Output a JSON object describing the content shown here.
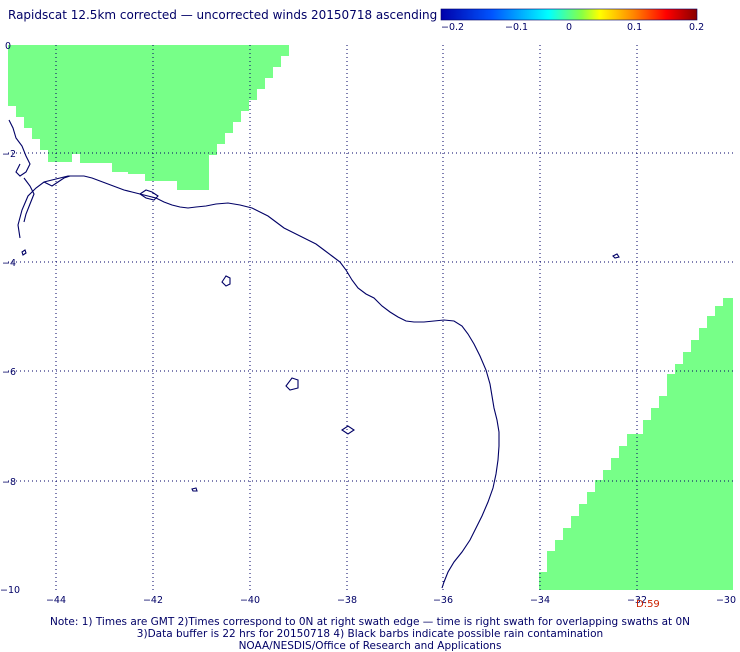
{
  "title": "Rapidscat 12.5km corrected — uncorrected winds 20150718 ascending",
  "colorbar": {
    "ticks": [
      "−0.2",
      "−0.1",
      "0",
      "0.1",
      "0.2"
    ],
    "stops": [
      "#0000aa",
      "#0055ff",
      "#00ffff",
      "#ffff00",
      "#ff8800",
      "#ff0000",
      "#880000"
    ]
  },
  "axes": {
    "x_ticks": [
      "−44",
      "−42",
      "−40",
      "−38",
      "−36",
      "−34",
      "−32",
      "−30"
    ],
    "y_ticks": [
      "0",
      "−2",
      "−4",
      "−6",
      "−8",
      "−10"
    ],
    "lon_range": [
      -45,
      -30
    ],
    "lat_range": [
      -10,
      0
    ]
  },
  "colors": {
    "swath": "#77ff88",
    "coast": "#000066",
    "grid": "#000066"
  },
  "data_label": "D:59",
  "notes": {
    "line1": "Note: 1) Times are GMT 2)Times correspond to 0N at right swath edge — time is right swath for overlapping swaths at 0N",
    "line2": "3)Data buffer is 22 hrs for 20150718 4) Black barbs indicate possible rain contamination",
    "line3": "NOAA/NESDIS/Office of Research and Applications"
  }
}
